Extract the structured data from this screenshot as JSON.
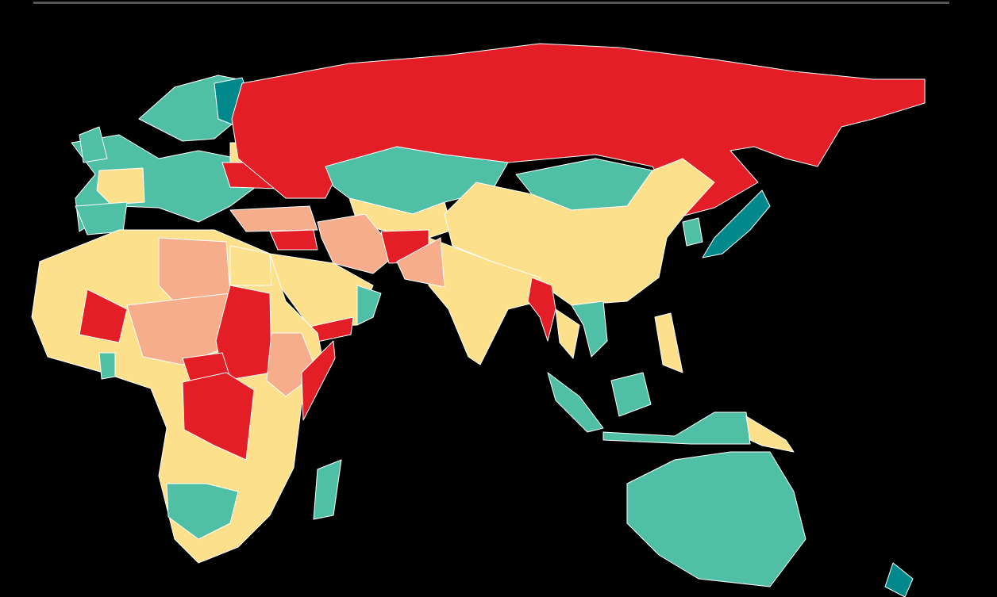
{
  "map": {
    "type": "choropleth",
    "background": "#000000",
    "palette": {
      "red": "#e31e26",
      "salmon": "#f5ad8c",
      "yellow": "#fde08c",
      "teal": "#4fbfa5",
      "dark_teal": "#00888a"
    }
  }
}
